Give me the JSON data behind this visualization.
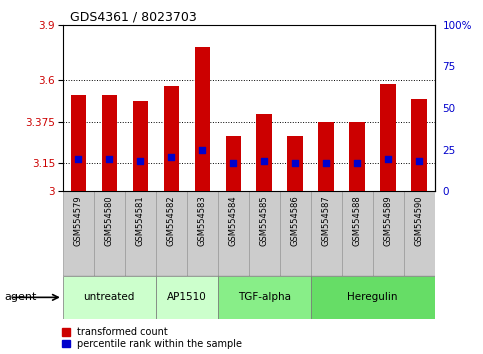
{
  "title": "GDS4361 / 8023703",
  "samples": [
    "GSM554579",
    "GSM554580",
    "GSM554581",
    "GSM554582",
    "GSM554583",
    "GSM554584",
    "GSM554585",
    "GSM554586",
    "GSM554587",
    "GSM554588",
    "GSM554589",
    "GSM554590"
  ],
  "bar_values": [
    3.52,
    3.52,
    3.49,
    3.57,
    3.78,
    3.3,
    3.42,
    3.3,
    3.375,
    3.375,
    3.58,
    3.5
  ],
  "percentile_values": [
    3.175,
    3.175,
    3.165,
    3.185,
    3.22,
    3.15,
    3.165,
    3.15,
    3.155,
    3.155,
    3.175,
    3.165
  ],
  "ylim_left": [
    3.0,
    3.9
  ],
  "yticks_left": [
    3.0,
    3.15,
    3.375,
    3.6,
    3.9
  ],
  "ytick_labels_left": [
    "3",
    "3.15",
    "3.375",
    "3.6",
    "3.9"
  ],
  "ylim_right": [
    0,
    100
  ],
  "yticks_right": [
    0,
    25,
    50,
    75,
    100
  ],
  "ytick_labels_right": [
    "0",
    "25",
    "50",
    "75",
    "100%"
  ],
  "grid_lines": [
    3.15,
    3.375,
    3.6
  ],
  "bar_color": "#cc0000",
  "dot_color": "#0000cc",
  "bar_width": 0.5,
  "groups_def": [
    {
      "label": "untreated",
      "start": 0,
      "end": 2,
      "color": "#ccffcc"
    },
    {
      "label": "AP1510",
      "start": 3,
      "end": 4,
      "color": "#ccffcc"
    },
    {
      "label": "TGF-alpha",
      "start": 5,
      "end": 7,
      "color": "#88ee88"
    },
    {
      "label": "Heregulin",
      "start": 8,
      "end": 11,
      "color": "#66dd66"
    }
  ],
  "legend_bar_label": "transformed count",
  "legend_dot_label": "percentile rank within the sample",
  "agent_label": "agent",
  "bg_color": "#ffffff",
  "tick_label_color_left": "#cc0000",
  "tick_label_color_right": "#0000cc",
  "label_bg_color": "#cccccc",
  "label_border_color": "#999999"
}
